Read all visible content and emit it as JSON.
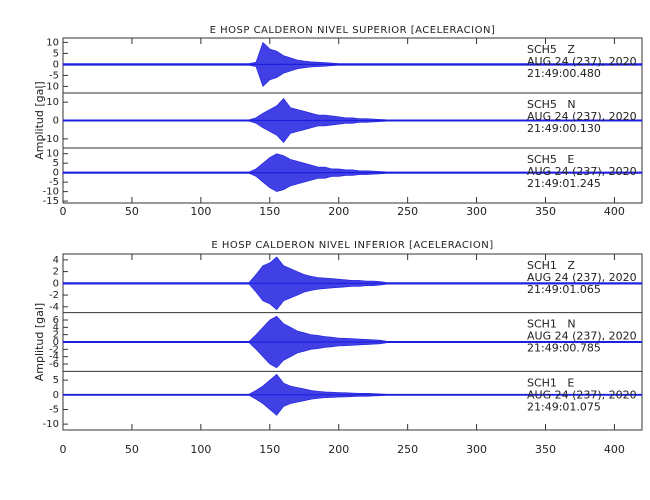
{
  "chart_data": [
    {
      "type": "seismogram",
      "title": "E HOSP CALDERON NIVEL SUPERIOR [ACELERACION]",
      "ylabel": "Amplitud [gal]",
      "xlim": [
        0,
        420
      ],
      "xticks": [
        0,
        50,
        100,
        150,
        200,
        250,
        300,
        350,
        400
      ],
      "x": [
        0,
        5,
        10,
        15,
        20,
        25,
        30,
        35,
        40,
        45,
        50,
        55,
        60,
        65,
        70,
        75,
        80,
        85,
        90,
        95,
        100,
        105,
        110,
        115,
        120,
        125,
        130,
        135,
        140,
        145,
        150,
        155,
        160,
        165,
        170,
        175,
        180,
        185,
        190,
        195,
        200,
        205,
        210,
        215,
        220,
        225,
        230,
        235,
        240,
        245,
        250,
        255,
        260,
        265,
        270,
        275,
        280,
        285,
        290,
        295,
        300,
        305,
        310,
        315,
        320,
        325,
        330,
        335,
        340,
        345,
        350,
        355,
        360,
        365,
        370,
        375,
        380,
        385,
        390,
        395,
        400,
        405,
        410,
        415,
        420
      ],
      "series": [
        {
          "name": "SCH5   Z",
          "date": "AUG 24 (237), 2020",
          "time": "21:49:00.480",
          "color": "#1f1fe0",
          "ylim": [
            -13,
            12
          ],
          "yticks": [
            -10,
            -5,
            0,
            5,
            10
          ],
          "values": [
            0.4,
            0.4,
            0.4,
            0.4,
            0.4,
            0.4,
            0.4,
            0.4,
            0.4,
            0.4,
            0.4,
            0.4,
            0.4,
            0.4,
            0.4,
            0.4,
            0.4,
            0.4,
            0.4,
            0.4,
            0.4,
            0.4,
            0.4,
            0.4,
            0.4,
            0.4,
            0.4,
            0.4,
            1,
            10,
            7,
            6,
            4,
            3,
            2,
            1.5,
            1.2,
            1,
            0.8,
            0.6,
            0.4,
            0.4,
            0.4,
            0.4,
            0.4,
            0.4,
            0.4,
            0.4,
            0.4,
            0.4,
            0.4,
            0.4,
            0.4,
            0.4,
            0.4,
            0.4,
            0.4,
            0.4,
            0.4,
            0.4,
            0.4,
            0.4,
            0.4,
            0.4,
            0.4,
            0.4,
            0.4,
            0.4,
            0.4,
            0.4,
            0.4,
            0.4,
            0.4,
            0.4,
            0.4,
            0.4,
            0.4,
            0.4,
            0.4,
            0.4,
            0.4,
            0.4,
            0.4,
            0.4,
            0.4
          ]
        },
        {
          "name": "SCH5   N",
          "date": "AUG 24 (237), 2020",
          "time": "21:49:00.130",
          "color": "#1f1fe0",
          "ylim": [
            -15,
            15
          ],
          "yticks": [
            -10,
            0,
            10
          ],
          "values": [
            0.4,
            0.4,
            0.4,
            0.4,
            0.4,
            0.4,
            0.4,
            0.4,
            0.4,
            0.4,
            0.4,
            0.4,
            0.4,
            0.4,
            0.4,
            0.4,
            0.4,
            0.4,
            0.4,
            0.4,
            0.4,
            0.4,
            0.4,
            0.4,
            0.4,
            0.4,
            0.4,
            0.4,
            1.5,
            4,
            6,
            8,
            12,
            7,
            6,
            5,
            4,
            3,
            3,
            2.5,
            2,
            1.5,
            1.5,
            1,
            1,
            0.8,
            0.6,
            0.4,
            0.4,
            0.4,
            0.4,
            0.4,
            0.4,
            0.4,
            0.4,
            0.4,
            0.4,
            0.4,
            0.4,
            0.4,
            0.4,
            0.4,
            0.4,
            0.4,
            0.4,
            0.4,
            0.4,
            0.4,
            0.4,
            0.4,
            0.4,
            0.4,
            0.4,
            0.4,
            0.4,
            0.4,
            0.4,
            0.4,
            0.4,
            0.4,
            0.4,
            0.4,
            0.4,
            0.4,
            0.4
          ]
        },
        {
          "name": "SCH5   E",
          "date": "AUG 24 (237), 2020",
          "time": "21:49:01.245",
          "color": "#1f1fe0",
          "ylim": [
            -16,
            13
          ],
          "yticks": [
            -15,
            -10,
            -5,
            0,
            5,
            10
          ],
          "values": [
            0.4,
            0.4,
            0.4,
            0.4,
            0.4,
            0.4,
            0.4,
            0.4,
            0.4,
            0.4,
            0.4,
            0.4,
            0.4,
            0.4,
            0.4,
            0.4,
            0.4,
            0.4,
            0.4,
            0.4,
            0.4,
            0.4,
            0.4,
            0.4,
            0.4,
            0.4,
            0.4,
            0.4,
            2,
            5,
            8,
            10,
            9,
            7,
            6,
            5,
            4,
            3,
            3,
            2,
            2,
            1.5,
            1.5,
            1,
            1,
            0.8,
            0.6,
            0.4,
            0.4,
            0.4,
            0.4,
            0.4,
            0.4,
            0.4,
            0.4,
            0.4,
            0.4,
            0.4,
            0.4,
            0.4,
            0.4,
            0.4,
            0.4,
            0.4,
            0.4,
            0.4,
            0.4,
            0.4,
            0.4,
            0.4,
            0.4,
            0.4,
            0.4,
            0.4,
            0.4,
            0.4,
            0.4,
            0.4,
            0.4,
            0.4,
            0.4,
            0.4,
            0.4,
            0.4,
            0.4
          ]
        }
      ]
    },
    {
      "type": "seismogram",
      "title": "E HOSP CALDERON NIVEL INFERIOR [ACELERACION]",
      "ylabel": "Amplitud [gal]",
      "xlim": [
        0,
        420
      ],
      "xticks": [
        0,
        50,
        100,
        150,
        200,
        250,
        300,
        350,
        400
      ],
      "x": [
        0,
        5,
        10,
        15,
        20,
        25,
        30,
        35,
        40,
        45,
        50,
        55,
        60,
        65,
        70,
        75,
        80,
        85,
        90,
        95,
        100,
        105,
        110,
        115,
        120,
        125,
        130,
        135,
        140,
        145,
        150,
        155,
        160,
        165,
        170,
        175,
        180,
        185,
        190,
        195,
        200,
        205,
        210,
        215,
        220,
        225,
        230,
        235,
        240,
        245,
        250,
        255,
        260,
        265,
        270,
        275,
        280,
        285,
        290,
        295,
        300,
        305,
        310,
        315,
        320,
        325,
        330,
        335,
        340,
        345,
        350,
        355,
        360,
        365,
        370,
        375,
        380,
        385,
        390,
        395,
        400,
        405,
        410,
        415,
        420
      ],
      "series": [
        {
          "name": "SCH1   Z",
          "date": "AUG 24 (237), 2020",
          "time": "21:49:01.065",
          "color": "#1f1fe0",
          "ylim": [
            -5,
            5
          ],
          "yticks": [
            -4,
            -2,
            0,
            2,
            4
          ],
          "values": [
            0.15,
            0.15,
            0.15,
            0.15,
            0.15,
            0.15,
            0.15,
            0.15,
            0.15,
            0.15,
            0.15,
            0.15,
            0.15,
            0.15,
            0.15,
            0.15,
            0.15,
            0.15,
            0.15,
            0.15,
            0.15,
            0.15,
            0.15,
            0.15,
            0.15,
            0.15,
            0.15,
            0.15,
            1.5,
            3,
            3.5,
            4.5,
            3,
            2.5,
            2,
            1.5,
            1.2,
            1,
            0.9,
            0.8,
            0.7,
            0.6,
            0.5,
            0.5,
            0.4,
            0.4,
            0.3,
            0.15,
            0.15,
            0.15,
            0.15,
            0.15,
            0.15,
            0.15,
            0.15,
            0.15,
            0.15,
            0.15,
            0.15,
            0.15,
            0.15,
            0.15,
            0.15,
            0.15,
            0.15,
            0.15,
            0.15,
            0.15,
            0.15,
            0.15,
            0.15,
            0.15,
            0.15,
            0.15,
            0.15,
            0.15,
            0.15,
            0.15,
            0.15,
            0.15,
            0.15,
            0.15,
            0.15,
            0.15,
            0.15
          ]
        },
        {
          "name": "SCH1   N",
          "date": "AUG 24 (237), 2020",
          "time": "21:49:00.785",
          "color": "#1f1fe0",
          "ylim": [
            -8,
            8
          ],
          "yticks": [
            -6,
            -4,
            -2,
            0,
            2,
            4,
            6
          ],
          "values": [
            0.2,
            0.2,
            0.2,
            0.2,
            0.2,
            0.2,
            0.2,
            0.2,
            0.2,
            0.2,
            0.2,
            0.2,
            0.2,
            0.2,
            0.2,
            0.2,
            0.2,
            0.2,
            0.2,
            0.2,
            0.2,
            0.2,
            0.2,
            0.2,
            0.2,
            0.2,
            0.2,
            0.2,
            2,
            4,
            6,
            7,
            5,
            4,
            3,
            2.5,
            2,
            1.8,
            1.5,
            1.3,
            1.1,
            1,
            0.9,
            0.8,
            0.7,
            0.6,
            0.5,
            0.2,
            0.2,
            0.2,
            0.2,
            0.2,
            0.2,
            0.2,
            0.2,
            0.2,
            0.2,
            0.2,
            0.2,
            0.2,
            0.2,
            0.2,
            0.2,
            0.2,
            0.2,
            0.2,
            0.2,
            0.2,
            0.2,
            0.2,
            0.2,
            0.2,
            0.2,
            0.2,
            0.2,
            0.2,
            0.2,
            0.2,
            0.2,
            0.2,
            0.2,
            0.2,
            0.2,
            0.2,
            0.2
          ]
        },
        {
          "name": "SCH1   E",
          "date": "AUG 24 (237), 2020",
          "time": "21:49:01.075",
          "color": "#1f1fe0",
          "ylim": [
            -12,
            8
          ],
          "yticks": [
            -10,
            -5,
            0,
            5
          ],
          "values": [
            0.2,
            0.2,
            0.2,
            0.2,
            0.2,
            0.2,
            0.2,
            0.2,
            0.2,
            0.2,
            0.2,
            0.2,
            0.2,
            0.2,
            0.2,
            0.2,
            0.2,
            0.2,
            0.2,
            0.2,
            0.2,
            0.2,
            0.2,
            0.2,
            0.2,
            0.2,
            0.2,
            0.2,
            1.5,
            3,
            5,
            7,
            4,
            3,
            2.5,
            2,
            1.5,
            1.2,
            1,
            0.9,
            0.8,
            0.7,
            0.6,
            0.5,
            0.5,
            0.4,
            0.3,
            0.2,
            0.2,
            0.2,
            0.2,
            0.2,
            0.2,
            0.2,
            0.2,
            0.2,
            0.2,
            0.2,
            0.2,
            0.2,
            0.2,
            0.2,
            0.2,
            0.2,
            0.2,
            0.2,
            0.2,
            0.2,
            0.2,
            0.2,
            0.2,
            0.2,
            0.2,
            0.2,
            0.2,
            0.2,
            0.2,
            0.2,
            0.2,
            0.2,
            0.2,
            0.2,
            0.2,
            0.2,
            0.2
          ]
        }
      ]
    }
  ]
}
